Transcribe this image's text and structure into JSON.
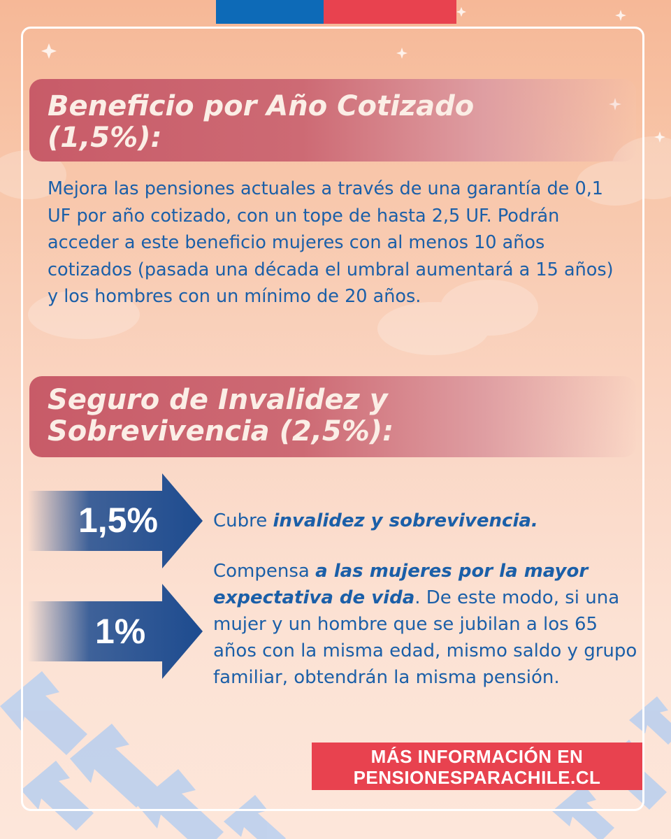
{
  "colors": {
    "flag_blue": "#0d6ab7",
    "flag_red": "#e8424f",
    "title_bar": "#c85b68",
    "body_text": "#1b5fa8",
    "arrow": "#1d4b8f",
    "cta_background": "#e8424f"
  },
  "section1": {
    "title": "Beneficio por Año Cotizado\n (1,5%):",
    "body": "Mejora las pensiones actuales a través de una garantía de 0,1 UF por año cotizado, con un tope de hasta 2,5 UF. Podrán acceder a este beneficio mujeres con al menos 10 años cotizados (pasada una década el umbral aumentará a 15 años) y los hombres con un mínimo de 20 años."
  },
  "section2": {
    "title": "Seguro de Invalidez y\nSobrevivencia (2,5%):",
    "items": [
      {
        "percent": "1,5%",
        "intro": "Cubre ",
        "emphasis": "invalidez y sobrevivencia."
      },
      {
        "percent": "1%",
        "intro": "Compensa ",
        "emphasis": "a las mujeres por la mayor expectativa de vida",
        "rest": ".  De este modo, si una mujer y un hombre que se jubilan a los 65 años con la misma edad, mismo saldo y grupo familiar, obtendrán la misma pensión."
      }
    ]
  },
  "cta": {
    "line1": "MÁS INFORMACIÓN EN",
    "line2": "PENSIONESPARACHILE.CL"
  }
}
